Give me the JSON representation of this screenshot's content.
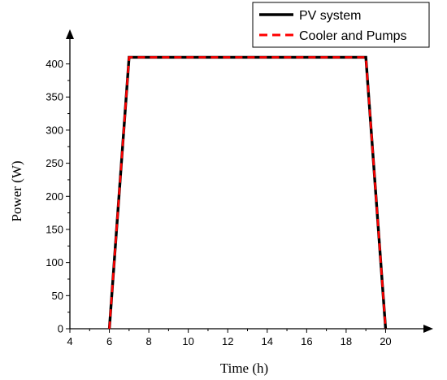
{
  "chart_data": {
    "type": "line",
    "xlabel": "Time (h)",
    "ylabel": "Power (W)",
    "xlim": [
      4,
      22
    ],
    "ylim": [
      0,
      440
    ],
    "xticks": [
      4,
      6,
      8,
      10,
      12,
      14,
      16,
      18,
      20
    ],
    "yticks": [
      0,
      50,
      100,
      150,
      200,
      250,
      300,
      350,
      400
    ],
    "grid": false,
    "legend_position": "top-right",
    "series": [
      {
        "name": "PV system",
        "color": "#000000",
        "style": "solid",
        "x": [
          6,
          7,
          19,
          20
        ],
        "y": [
          0,
          410,
          410,
          0
        ]
      },
      {
        "name": "Cooler and Pumps",
        "color": "#ff0000",
        "style": "dashed",
        "x": [
          6,
          7,
          19,
          20
        ],
        "y": [
          0,
          410,
          410,
          0
        ]
      }
    ]
  }
}
